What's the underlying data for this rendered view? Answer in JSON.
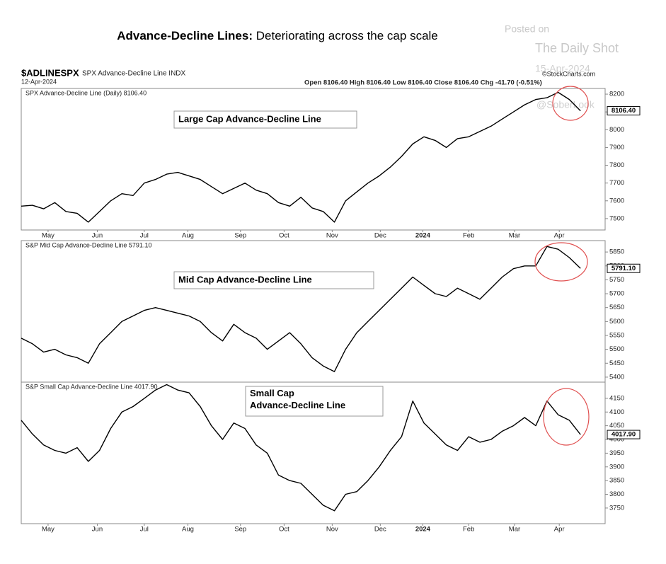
{
  "title_bold": "Advance-Decline Lines:",
  "title_rest": "Deteriorating across the cap scale",
  "watermark": {
    "posted": "Posted on",
    "source": "The Daily Shot",
    "date": "15-Apr-2024",
    "handle": "@SoberLook"
  },
  "header": {
    "symbol": "$ADLINESPX",
    "name": "SPX Advance-Decline Line INDX",
    "date": "12-Apr-2024",
    "quote": "Open 8106.40 High 8106.40 Low 8106.40 Close 8106.40 Chg -41.70 (-0.51%)",
    "credit": "©StockCharts.com"
  },
  "chart_data": [
    {
      "type": "line",
      "title": "SPX Advance-Decline Line (Daily) 8106.40",
      "annotation": "Large Cap Advance-Decline Line",
      "color": "#000000",
      "xlim": [
        0,
        52.2
      ],
      "xticks": [
        {
          "value": 2.4,
          "label": "May"
        },
        {
          "value": 6.8,
          "label": "Jun"
        },
        {
          "value": 11.0,
          "label": "Jul"
        },
        {
          "value": 14.9,
          "label": "Aug"
        },
        {
          "value": 19.6,
          "label": "Sep"
        },
        {
          "value": 23.5,
          "label": "Oct"
        },
        {
          "value": 27.8,
          "label": "Nov"
        },
        {
          "value": 32.1,
          "label": "Dec"
        },
        {
          "value": 35.9,
          "label": "2024"
        },
        {
          "value": 40.0,
          "label": "Feb"
        },
        {
          "value": 44.1,
          "label": "Mar"
        },
        {
          "value": 48.1,
          "label": "Apr"
        }
      ],
      "ylim": [
        7436,
        8232
      ],
      "yticks": [
        7500,
        7600,
        7700,
        7800,
        7900,
        8000,
        8100,
        8200
      ],
      "values": [
        7570,
        7575,
        7555,
        7590,
        7540,
        7530,
        7480,
        7540,
        7600,
        7640,
        7630,
        7700,
        7720,
        7750,
        7760,
        7740,
        7720,
        7680,
        7640,
        7670,
        7700,
        7660,
        7640,
        7590,
        7570,
        7620,
        7560,
        7540,
        7480,
        7600,
        7650,
        7700,
        7740,
        7790,
        7850,
        7920,
        7960,
        7940,
        7900,
        7950,
        7960,
        7990,
        8020,
        8060,
        8100,
        8140,
        8170,
        8180,
        8210,
        8170,
        8106.4
      ],
      "value_labels": [
        null,
        null,
        null,
        null,
        null,
        null,
        null,
        null,
        null,
        null,
        null,
        null,
        null,
        null,
        null,
        null,
        null,
        null,
        null,
        null,
        null,
        null,
        null,
        null,
        null,
        null,
        null,
        null,
        null,
        null,
        null,
        null,
        null,
        null,
        null,
        null,
        null,
        null,
        null,
        null,
        null,
        null,
        null,
        null,
        null,
        null,
        null,
        null,
        null,
        null,
        "8106.40"
      ]
    },
    {
      "type": "line",
      "title": "S&P Mid Cap Advance-Decline Line 5791.10",
      "annotation": "Mid Cap Advance-Decline Line",
      "color": "#000000",
      "xlim": [
        0,
        52.2
      ],
      "ylim": [
        5382,
        5891
      ],
      "yticks": [
        5400,
        5450,
        5500,
        5550,
        5600,
        5650,
        5700,
        5750,
        5800,
        5850
      ],
      "values": [
        5540,
        5520,
        5490,
        5500,
        5480,
        5470,
        5450,
        5520,
        5560,
        5600,
        5620,
        5640,
        5650,
        5640,
        5630,
        5620,
        5600,
        5560,
        5530,
        5590,
        5560,
        5540,
        5500,
        5530,
        5560,
        5520,
        5470,
        5440,
        5420,
        5500,
        5560,
        5600,
        5640,
        5680,
        5720,
        5760,
        5730,
        5700,
        5690,
        5720,
        5700,
        5680,
        5720,
        5760,
        5790,
        5800,
        5800,
        5870,
        5860,
        5830,
        5791.1
      ],
      "value_labels": [
        null,
        null,
        null,
        null,
        null,
        null,
        null,
        null,
        null,
        null,
        null,
        null,
        null,
        null,
        null,
        null,
        null,
        null,
        null,
        null,
        null,
        null,
        null,
        null,
        null,
        null,
        null,
        null,
        null,
        null,
        null,
        null,
        null,
        null,
        null,
        null,
        null,
        null,
        null,
        null,
        null,
        null,
        null,
        null,
        null,
        null,
        null,
        null,
        null,
        null,
        "5791.10"
      ]
    },
    {
      "type": "line",
      "title": "S&P Small Cap Advance-Decline Line 4017.90",
      "annotation": "Small Cap Advance-Decline Line",
      "color": "#000000",
      "xlim": [
        0,
        52.2
      ],
      "xticks": [
        {
          "value": 2.4,
          "label": "May"
        },
        {
          "value": 6.8,
          "label": "Jun"
        },
        {
          "value": 11.0,
          "label": "Jul"
        },
        {
          "value": 14.9,
          "label": "Aug"
        },
        {
          "value": 19.6,
          "label": "Sep"
        },
        {
          "value": 23.5,
          "label": "Oct"
        },
        {
          "value": 27.8,
          "label": "Nov"
        },
        {
          "value": 32.1,
          "label": "Dec"
        },
        {
          "value": 35.9,
          "label": "2024"
        },
        {
          "value": 40.0,
          "label": "Feb"
        },
        {
          "value": 44.1,
          "label": "Mar"
        },
        {
          "value": 48.1,
          "label": "Apr"
        }
      ],
      "ylim": [
        3693,
        4209
      ],
      "yticks": [
        3750,
        3800,
        3850,
        3900,
        3950,
        4000,
        4050,
        4100,
        4150
      ],
      "values": [
        4070,
        4020,
        3980,
        3960,
        3950,
        3970,
        3920,
        3960,
        4040,
        4100,
        4120,
        4150,
        4180,
        4200,
        4180,
        4170,
        4120,
        4050,
        4000,
        4060,
        4040,
        3980,
        3950,
        3870,
        3850,
        3840,
        3800,
        3760,
        3740,
        3800,
        3810,
        3850,
        3900,
        3960,
        4010,
        4140,
        4060,
        4020,
        3980,
        3960,
        4010,
        3990,
        4000,
        4030,
        4050,
        4080,
        4050,
        4140,
        4090,
        4070,
        4017.9
      ],
      "value_labels": [
        null,
        null,
        null,
        null,
        null,
        null,
        null,
        null,
        null,
        null,
        null,
        null,
        null,
        null,
        null,
        null,
        null,
        null,
        null,
        null,
        null,
        null,
        null,
        null,
        null,
        null,
        null,
        null,
        null,
        null,
        null,
        null,
        null,
        null,
        null,
        null,
        null,
        null,
        null,
        null,
        null,
        null,
        null,
        null,
        null,
        null,
        null,
        null,
        null,
        null,
        "4017.90"
      ]
    }
  ]
}
